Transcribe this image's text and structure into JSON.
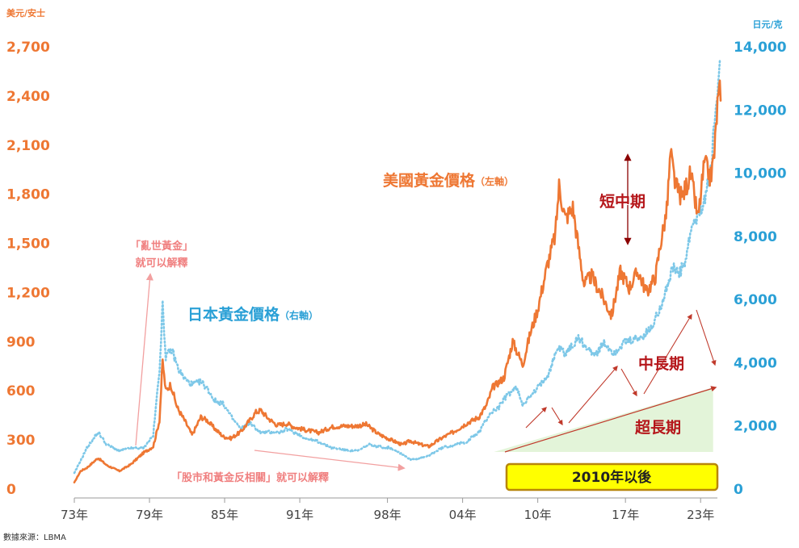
{
  "chart_data": {
    "type": "line",
    "title": "",
    "left_axis": {
      "unit_label": "美元/安士",
      "ylim": [
        0,
        2700
      ],
      "ticks": [
        {
          "value": 0,
          "label": "0"
        },
        {
          "value": 300,
          "label": "300"
        },
        {
          "value": 600,
          "label": "600"
        },
        {
          "value": 900,
          "label": "900"
        },
        {
          "value": 1200,
          "label": "1,200"
        },
        {
          "value": 1500,
          "label": "1,500"
        },
        {
          "value": 1800,
          "label": "1,800"
        },
        {
          "value": 2100,
          "label": "2,100"
        },
        {
          "value": 2400,
          "label": "2,400"
        },
        {
          "value": 2700,
          "label": "2,700"
        }
      ]
    },
    "right_axis": {
      "unit_label": "日元/克",
      "ylim": [
        0,
        14000
      ],
      "ticks": [
        {
          "value": 0,
          "label": "0"
        },
        {
          "value": 2000,
          "label": "2,000"
        },
        {
          "value": 4000,
          "label": "4,000"
        },
        {
          "value": 6000,
          "label": "6,000"
        },
        {
          "value": 8000,
          "label": "8,000"
        },
        {
          "value": 10000,
          "label": "10,000"
        },
        {
          "value": 12000,
          "label": "12,000"
        },
        {
          "value": 14000,
          "label": "14,000"
        }
      ]
    },
    "x_axis": {
      "xlim": [
        1973,
        2024.6
      ],
      "ticks": [
        {
          "value": 1973,
          "label": "73年"
        },
        {
          "value": 1979,
          "label": "79年"
        },
        {
          "value": 1985,
          "label": "85年"
        },
        {
          "value": 1991,
          "label": "91年"
        },
        {
          "value": 1998,
          "label": "98年"
        },
        {
          "value": 2004,
          "label": "04年"
        },
        {
          "value": 2010,
          "label": "10年"
        },
        {
          "value": 2017,
          "label": "17年"
        },
        {
          "value": 2023,
          "label": "23年"
        }
      ]
    },
    "series": [
      {
        "name": "美國黃金價格",
        "axis_note": "（左軸）",
        "axis": "left",
        "color": "#ee7733",
        "style": "solid",
        "points": [
          [
            1973.0,
            40
          ],
          [
            1973.5,
            110
          ],
          [
            1974.0,
            130
          ],
          [
            1974.9,
            190
          ],
          [
            1975.6,
            145
          ],
          [
            1976.6,
            110
          ],
          [
            1977.5,
            150
          ],
          [
            1978.5,
            220
          ],
          [
            1979.3,
            260
          ],
          [
            1979.8,
            420
          ],
          [
            1980.05,
            780
          ],
          [
            1980.3,
            600
          ],
          [
            1980.7,
            640
          ],
          [
            1981.2,
            500
          ],
          [
            1981.8,
            420
          ],
          [
            1982.4,
            330
          ],
          [
            1983.1,
            440
          ],
          [
            1983.6,
            420
          ],
          [
            1984.2,
            370
          ],
          [
            1984.9,
            320
          ],
          [
            1985.5,
            310
          ],
          [
            1986.3,
            350
          ],
          [
            1987.0,
            420
          ],
          [
            1987.5,
            470
          ],
          [
            1987.9,
            480
          ],
          [
            1988.5,
            430
          ],
          [
            1989.2,
            390
          ],
          [
            1990.0,
            400
          ],
          [
            1990.5,
            380
          ],
          [
            1991.5,
            360
          ],
          [
            1992.5,
            345
          ],
          [
            1993.6,
            380
          ],
          [
            1994.5,
            385
          ],
          [
            1995.5,
            385
          ],
          [
            1996.3,
            395
          ],
          [
            1997.3,
            335
          ],
          [
            1998.3,
            300
          ],
          [
            1999.2,
            270
          ],
          [
            1999.8,
            295
          ],
          [
            2000.5,
            275
          ],
          [
            2001.3,
            260
          ],
          [
            2002.3,
            310
          ],
          [
            2003.3,
            350
          ],
          [
            2004.3,
            400
          ],
          [
            2005.3,
            440
          ],
          [
            2005.9,
            510
          ],
          [
            2006.4,
            620
          ],
          [
            2007.3,
            680
          ],
          [
            2008.0,
            900
          ],
          [
            2008.8,
            760
          ],
          [
            2009.4,
            950
          ],
          [
            2010.0,
            1100
          ],
          [
            2010.8,
            1380
          ],
          [
            2011.4,
            1550
          ],
          [
            2011.7,
            1850
          ],
          [
            2012.2,
            1650
          ],
          [
            2012.8,
            1720
          ],
          [
            2013.3,
            1450
          ],
          [
            2013.7,
            1250
          ],
          [
            2014.3,
            1300
          ],
          [
            2015.0,
            1200
          ],
          [
            2015.9,
            1060
          ],
          [
            2016.6,
            1330
          ],
          [
            2017.3,
            1230
          ],
          [
            2018.0,
            1330
          ],
          [
            2018.7,
            1200
          ],
          [
            2019.4,
            1300
          ],
          [
            2019.8,
            1500
          ],
          [
            2020.3,
            1700
          ],
          [
            2020.6,
            2050
          ],
          [
            2021.0,
            1850
          ],
          [
            2021.5,
            1780
          ],
          [
            2022.2,
            1920
          ],
          [
            2022.8,
            1650
          ],
          [
            2023.3,
            1990
          ],
          [
            2023.8,
            1900
          ],
          [
            2024.1,
            2050
          ],
          [
            2024.35,
            2350
          ],
          [
            2024.6,
            2450
          ]
        ]
      },
      {
        "name": "日本黃金價格",
        "axis_note": "（右軸）",
        "axis": "right",
        "color": "#7ec8e8",
        "style": "dotted",
        "points": [
          [
            1973.0,
            500
          ],
          [
            1973.5,
            900
          ],
          [
            1974.0,
            1300
          ],
          [
            1974.9,
            1800
          ],
          [
            1975.6,
            1400
          ],
          [
            1976.6,
            1200
          ],
          [
            1977.5,
            1300
          ],
          [
            1978.5,
            1300
          ],
          [
            1979.3,
            1700
          ],
          [
            1979.8,
            3800
          ],
          [
            1980.05,
            5800
          ],
          [
            1980.3,
            4200
          ],
          [
            1980.8,
            4400
          ],
          [
            1981.3,
            3800
          ],
          [
            1981.8,
            3500
          ],
          [
            1982.4,
            3300
          ],
          [
            1983.1,
            3400
          ],
          [
            1983.6,
            3200
          ],
          [
            1984.2,
            2800
          ],
          [
            1984.9,
            2700
          ],
          [
            1985.5,
            2300
          ],
          [
            1986.3,
            1900
          ],
          [
            1987.0,
            2100
          ],
          [
            1987.8,
            1800
          ],
          [
            1988.6,
            1800
          ],
          [
            1989.4,
            1800
          ],
          [
            1990.0,
            1900
          ],
          [
            1990.8,
            1750
          ],
          [
            1991.5,
            1600
          ],
          [
            1992.5,
            1500
          ],
          [
            1993.6,
            1300
          ],
          [
            1994.6,
            1250
          ],
          [
            1995.6,
            1200
          ],
          [
            1996.5,
            1400
          ],
          [
            1997.3,
            1350
          ],
          [
            1998.3,
            1300
          ],
          [
            1999.2,
            1100
          ],
          [
            1999.8,
            950
          ],
          [
            2000.5,
            950
          ],
          [
            2001.3,
            1050
          ],
          [
            2002.3,
            1300
          ],
          [
            2003.3,
            1400
          ],
          [
            2004.3,
            1500
          ],
          [
            2005.3,
            1800
          ],
          [
            2006.2,
            2400
          ],
          [
            2006.9,
            2600
          ],
          [
            2007.6,
            3000
          ],
          [
            2008.3,
            3200
          ],
          [
            2008.8,
            2700
          ],
          [
            2009.6,
            3000
          ],
          [
            2010.2,
            3300
          ],
          [
            2010.9,
            3700
          ],
          [
            2011.6,
            4500
          ],
          [
            2012.2,
            4300
          ],
          [
            2012.9,
            4600
          ],
          [
            2013.3,
            4800
          ],
          [
            2014.0,
            4400
          ],
          [
            2014.7,
            4300
          ],
          [
            2015.3,
            4600
          ],
          [
            2016.1,
            4300
          ],
          [
            2016.8,
            4600
          ],
          [
            2017.5,
            4700
          ],
          [
            2018.3,
            4800
          ],
          [
            2019.1,
            5100
          ],
          [
            2019.8,
            5800
          ],
          [
            2020.4,
            6500
          ],
          [
            2020.8,
            7000
          ],
          [
            2021.3,
            6800
          ],
          [
            2021.8,
            7200
          ],
          [
            2022.3,
            8300
          ],
          [
            2022.8,
            8600
          ],
          [
            2023.3,
            9200
          ],
          [
            2023.8,
            10000
          ],
          [
            2024.1,
            11500
          ],
          [
            2024.4,
            12800
          ],
          [
            2024.6,
            13800
          ]
        ]
      }
    ],
    "source_note": "數據來源：LBMA",
    "annotations": {
      "crisis_gold_line1": "「亂世黃金」",
      "crisis_gold_line2": "就可以解釋",
      "negative_corr": "「股市和黃金反相關」就可以解釋",
      "short_term": "短中期",
      "mid_long_term": "中長期",
      "super_long_term": "超長期",
      "since_2010": "2010年以後"
    },
    "colors": {
      "orange": "#ee7733",
      "blue": "#2aa0d6",
      "light_blue": "#7ec8e8",
      "dark_red": "#b5161a",
      "pink": "#f08080",
      "pink_arrow": "#f2a0a0",
      "green_fill": "#e3f4d9",
      "yellow_box": "#ffff00",
      "box_border": "#b8860b"
    }
  }
}
